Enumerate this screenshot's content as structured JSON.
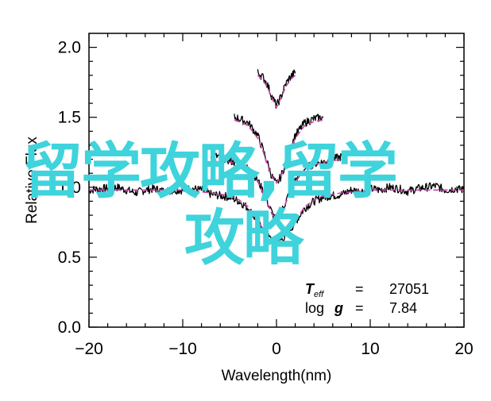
{
  "chart_data": {
    "type": "line",
    "title": "",
    "xlabel": "Wavelength(nm)",
    "ylabel": "Relative Flux",
    "xlim": [
      -20,
      20
    ],
    "ylim": [
      0,
      2.1
    ],
    "xticks": [
      -20,
      -10,
      0,
      10,
      20
    ],
    "yticks": [
      0.0,
      0.5,
      1.0,
      1.5,
      2.0
    ],
    "xtick_labels": [
      "−20",
      "−10",
      "0",
      "10",
      "20"
    ],
    "ytick_labels": [
      "0.0",
      "0.5",
      "1.0",
      "1.5",
      "2.0"
    ],
    "grid": false,
    "legend": "none",
    "annotations": {
      "teff_symbol": "T",
      "teff_sub": "eff",
      "teff_eq": "=",
      "teff_value": "27051",
      "logg_label": "log",
      "logg_g": "g",
      "logg_eq": "=",
      "logg_value": "7.84"
    },
    "series": [
      {
        "color": "#000000",
        "style": "noisy",
        "x": [
          -20,
          -18.5,
          -17,
          -16,
          -15,
          -14,
          -13,
          -12,
          -11,
          -10,
          -9,
          -8,
          -7,
          -6,
          -5,
          -4,
          -3,
          -2,
          -1,
          0,
          1,
          2,
          3,
          4,
          5,
          6,
          7,
          8,
          9,
          10,
          11,
          12,
          13,
          14,
          15,
          16,
          17,
          18,
          19,
          20
        ],
        "y": [
          0.98,
          0.99,
          1.0,
          0.98,
          0.96,
          0.98,
          0.99,
          0.97,
          0.98,
          0.98,
          0.99,
          0.98,
          0.95,
          0.94,
          0.93,
          0.9,
          0.85,
          0.75,
          0.65,
          0.6,
          0.65,
          0.75,
          0.85,
          0.9,
          0.93,
          0.94,
          0.95,
          0.98,
          0.97,
          0.99,
          0.98,
          1.0,
          0.99,
          0.97,
          0.99,
          1.0,
          1.01,
          0.98,
          0.99,
          0.98
        ]
      },
      {
        "color": "#cc44aa",
        "style": "dashed",
        "x": [
          -20,
          -15,
          -10,
          -7,
          -5,
          -4,
          -3,
          -2,
          -1,
          0,
          1,
          2,
          3,
          4,
          5,
          7,
          10,
          15,
          20
        ],
        "y": [
          0.98,
          0.98,
          0.98,
          0.96,
          0.94,
          0.91,
          0.86,
          0.76,
          0.66,
          0.62,
          0.66,
          0.76,
          0.86,
          0.91,
          0.94,
          0.96,
          0.98,
          0.98,
          0.98
        ]
      },
      {
        "color": "#000000",
        "style": "noisy",
        "x": [
          -7,
          -6,
          -5,
          -4,
          -3,
          -2.5,
          -2,
          -1.5,
          -1,
          -0.5,
          0,
          0.5,
          1,
          1.5,
          2,
          3,
          4,
          5,
          6,
          7
        ],
        "y": [
          1.22,
          1.22,
          1.19,
          1.17,
          1.13,
          1.1,
          1.05,
          0.98,
          0.9,
          0.82,
          0.76,
          0.82,
          0.9,
          0.98,
          1.05,
          1.13,
          1.17,
          1.18,
          1.2,
          1.22
        ]
      },
      {
        "color": "#cc44aa",
        "style": "dashed",
        "x": [
          -7,
          -5,
          -4,
          -3,
          -2,
          -1.5,
          -1,
          -0.5,
          0,
          0.5,
          1,
          1.5,
          2,
          3,
          4,
          5,
          7
        ],
        "y": [
          1.2,
          1.18,
          1.16,
          1.12,
          1.04,
          0.97,
          0.89,
          0.81,
          0.77,
          0.81,
          0.89,
          0.97,
          1.04,
          1.12,
          1.16,
          1.18,
          1.2
        ]
      },
      {
        "color": "#000000",
        "style": "noisy",
        "x": [
          -4.5,
          -4,
          -3,
          -2,
          -1.5,
          -1,
          -0.5,
          0,
          0.5,
          1,
          1.5,
          2,
          3,
          4,
          5
        ],
        "y": [
          1.5,
          1.49,
          1.46,
          1.37,
          1.28,
          1.18,
          1.08,
          1.02,
          1.08,
          1.18,
          1.28,
          1.37,
          1.46,
          1.49,
          1.5
        ]
      },
      {
        "color": "#cc44aa",
        "style": "dashed",
        "x": [
          -4.5,
          -4,
          -3,
          -2,
          -1.5,
          -1,
          -0.5,
          0,
          0.5,
          1,
          1.5,
          2,
          3,
          4,
          5
        ],
        "y": [
          1.48,
          1.47,
          1.44,
          1.35,
          1.27,
          1.17,
          1.08,
          1.03,
          1.08,
          1.17,
          1.27,
          1.35,
          1.44,
          1.47,
          1.48
        ]
      },
      {
        "color": "#000000",
        "style": "noisy",
        "x": [
          -2,
          -1.5,
          -1,
          -0.5,
          0,
          0.5,
          1,
          1.5,
          2
        ],
        "y": [
          1.82,
          1.79,
          1.74,
          1.65,
          1.58,
          1.65,
          1.74,
          1.79,
          1.82
        ]
      },
      {
        "color": "#cc44aa",
        "style": "dashed",
        "x": [
          -2,
          -1.5,
          -1,
          -0.5,
          0,
          0.5,
          1,
          1.5,
          2
        ],
        "y": [
          1.8,
          1.77,
          1.72,
          1.64,
          1.57,
          1.64,
          1.72,
          1.77,
          1.8
        ]
      }
    ]
  },
  "watermark": {
    "line1": "留学攻略,留学",
    "line2": "攻略",
    "color": "#3fd3dc"
  }
}
